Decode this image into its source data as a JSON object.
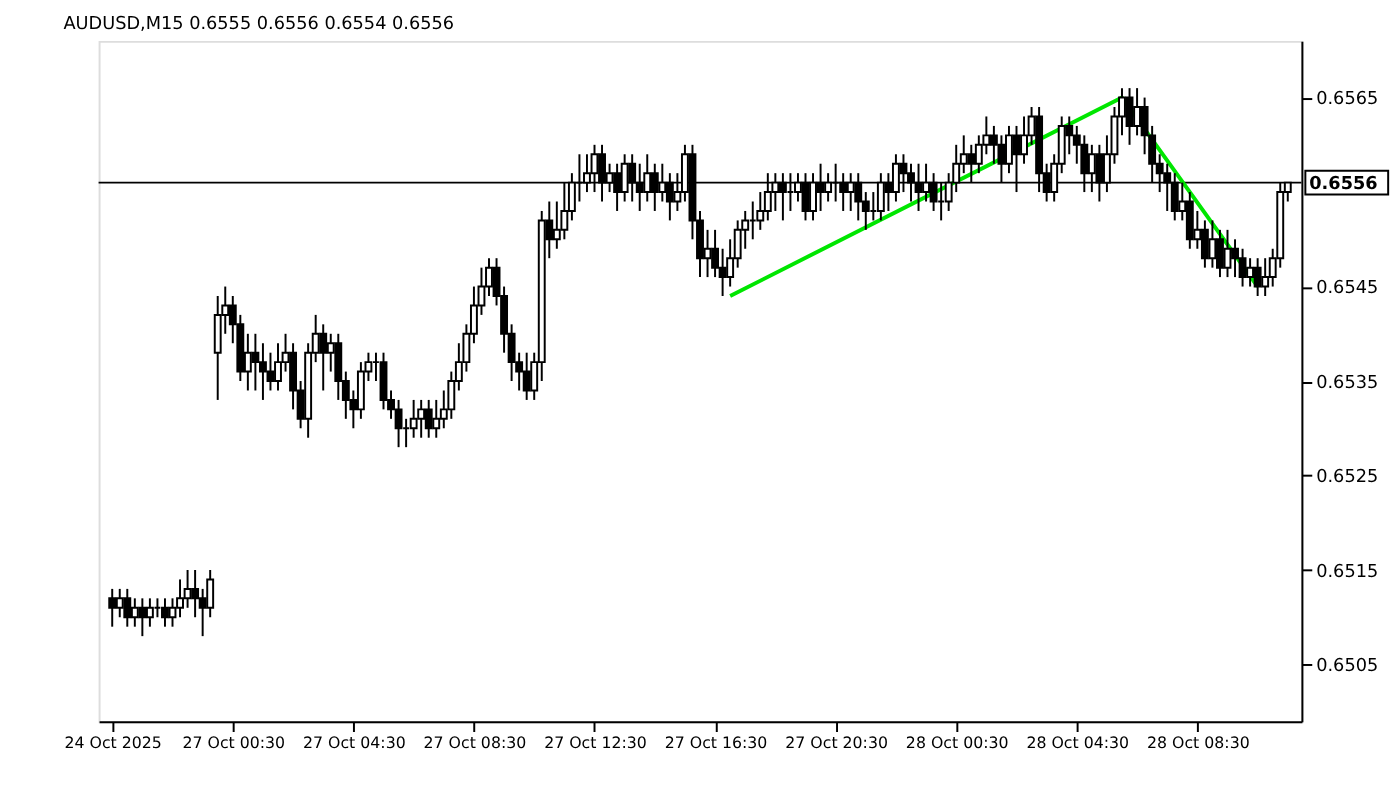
{
  "chart_data": {
    "type": "candlestick",
    "title": "AUDUSD,M15  0.6555 0.6556 0.6554 0.6556",
    "categories": [
      "24 Oct 2025",
      null,
      null,
      null,
      null,
      null,
      null,
      null,
      null,
      null,
      null,
      null,
      null,
      null,
      null,
      null,
      "27 Oct 00:30",
      null,
      null,
      null,
      null,
      null,
      null,
      null,
      null,
      null,
      null,
      null,
      null,
      null,
      null,
      null,
      "27 Oct 04:30",
      null,
      null,
      null,
      null,
      null,
      null,
      null,
      null,
      null,
      null,
      null,
      null,
      null,
      null,
      null,
      "27 Oct 08:30",
      null,
      null,
      null,
      null,
      null,
      null,
      null,
      null,
      null,
      null,
      null,
      null,
      null,
      null,
      null,
      "27 Oct 12:30",
      null,
      null,
      null,
      null,
      null,
      null,
      null,
      null,
      null,
      null,
      null,
      null,
      null,
      null,
      null,
      "27 Oct 16:30",
      null,
      null,
      null,
      null,
      null,
      null,
      null,
      null,
      null,
      null,
      null,
      null,
      null,
      null,
      null,
      "27 Oct 20:30",
      null,
      null,
      null,
      null,
      null,
      null,
      null,
      null,
      null,
      null,
      null,
      null,
      null,
      null,
      null,
      "28 Oct 00:30",
      null,
      null,
      null,
      null,
      null,
      null,
      null,
      null,
      null,
      null,
      null,
      null,
      null,
      null,
      null,
      "28 Oct 04:30",
      null,
      null,
      null,
      null,
      null,
      null,
      null,
      null,
      null,
      null,
      null,
      null,
      null,
      null,
      null,
      "28 Oct 08:30",
      null,
      null,
      null,
      null,
      null,
      null,
      null,
      null,
      null,
      null,
      null,
      null
    ],
    "series": [
      {
        "type": "candlestick",
        "color": "#000000",
        "ohlc": [
          [
            0.6512,
            0.6513,
            0.6509,
            0.6511
          ],
          [
            0.6511,
            0.6513,
            0.651,
            0.6512
          ],
          [
            0.6512,
            0.6513,
            0.6509,
            0.651
          ],
          [
            0.651,
            0.6512,
            0.6509,
            0.6511
          ],
          [
            0.6511,
            0.6512,
            0.6508,
            0.651
          ],
          [
            0.651,
            0.6512,
            0.6509,
            0.6511
          ],
          [
            0.6511,
            0.6512,
            0.651,
            0.6511
          ],
          [
            0.6511,
            0.6512,
            0.6509,
            0.651
          ],
          [
            0.651,
            0.6512,
            0.6509,
            0.6511
          ],
          [
            0.6511,
            0.6514,
            0.651,
            0.6512
          ],
          [
            0.6512,
            0.6515,
            0.6511,
            0.6513
          ],
          [
            0.6513,
            0.6515,
            0.651,
            0.6512
          ],
          [
            0.6512,
            0.6513,
            0.6508,
            0.6511
          ],
          [
            0.6511,
            0.6515,
            0.651,
            0.6514
          ],
          [
            0.6538,
            0.6544,
            0.6533,
            0.6542
          ],
          [
            0.6542,
            0.6545,
            0.654,
            0.6543
          ],
          [
            0.6543,
            0.6544,
            0.6539,
            0.6541
          ],
          [
            0.6541,
            0.6542,
            0.6535,
            0.6536
          ],
          [
            0.6536,
            0.654,
            0.6534,
            0.6538
          ],
          [
            0.6538,
            0.654,
            0.6534,
            0.6537
          ],
          [
            0.6537,
            0.6539,
            0.6533,
            0.6536
          ],
          [
            0.6536,
            0.6538,
            0.6534,
            0.6535
          ],
          [
            0.6535,
            0.6539,
            0.6534,
            0.6537
          ],
          [
            0.6537,
            0.654,
            0.6536,
            0.6538
          ],
          [
            0.6538,
            0.6539,
            0.6532,
            0.6534
          ],
          [
            0.6534,
            0.6535,
            0.653,
            0.6531
          ],
          [
            0.6531,
            0.6539,
            0.6529,
            0.6538
          ],
          [
            0.6538,
            0.6542,
            0.6537,
            0.654
          ],
          [
            0.654,
            0.6541,
            0.6534,
            0.6538
          ],
          [
            0.6538,
            0.654,
            0.6536,
            0.6539
          ],
          [
            0.6539,
            0.654,
            0.6533,
            0.6535
          ],
          [
            0.6535,
            0.6536,
            0.6531,
            0.6533
          ],
          [
            0.6533,
            0.6534,
            0.653,
            0.6532
          ],
          [
            0.6532,
            0.6537,
            0.6531,
            0.6536
          ],
          [
            0.6536,
            0.6538,
            0.6535,
            0.6537
          ],
          [
            0.6537,
            0.6538,
            0.6535,
            0.6537
          ],
          [
            0.6537,
            0.6538,
            0.6532,
            0.6533
          ],
          [
            0.6533,
            0.6534,
            0.6531,
            0.6532
          ],
          [
            0.6532,
            0.6533,
            0.6528,
            0.653
          ],
          [
            0.653,
            0.6531,
            0.6528,
            0.653
          ],
          [
            0.653,
            0.6533,
            0.6529,
            0.6531
          ],
          [
            0.6531,
            0.6533,
            0.6529,
            0.6532
          ],
          [
            0.6532,
            0.6533,
            0.6529,
            0.653
          ],
          [
            0.653,
            0.6533,
            0.6529,
            0.6531
          ],
          [
            0.6531,
            0.6534,
            0.653,
            0.6532
          ],
          [
            0.6532,
            0.6536,
            0.6531,
            0.6535
          ],
          [
            0.6535,
            0.6539,
            0.6534,
            0.6537
          ],
          [
            0.6537,
            0.6541,
            0.6536,
            0.654
          ],
          [
            0.654,
            0.6545,
            0.6539,
            0.6543
          ],
          [
            0.6543,
            0.6547,
            0.6542,
            0.6545
          ],
          [
            0.6545,
            0.6548,
            0.6544,
            0.6547
          ],
          [
            0.6547,
            0.6548,
            0.6543,
            0.6544
          ],
          [
            0.6544,
            0.6545,
            0.6538,
            0.654
          ],
          [
            0.654,
            0.6541,
            0.6535,
            0.6537
          ],
          [
            0.6537,
            0.6538,
            0.6534,
            0.6536
          ],
          [
            0.6536,
            0.6538,
            0.6533,
            0.6534
          ],
          [
            0.6534,
            0.6538,
            0.6533,
            0.6537
          ],
          [
            0.6537,
            0.6553,
            0.6535,
            0.6552
          ],
          [
            0.6552,
            0.6554,
            0.6548,
            0.655
          ],
          [
            0.655,
            0.6554,
            0.6549,
            0.6551
          ],
          [
            0.6551,
            0.6556,
            0.655,
            0.6553
          ],
          [
            0.6553,
            0.6557,
            0.6552,
            0.6556
          ],
          [
            0.6556,
            0.6559,
            0.6554,
            0.6556
          ],
          [
            0.6556,
            0.6559,
            0.6555,
            0.6557
          ],
          [
            0.6557,
            0.656,
            0.6555,
            0.6559
          ],
          [
            0.6559,
            0.656,
            0.6554,
            0.6556
          ],
          [
            0.6556,
            0.6558,
            0.6555,
            0.6557
          ],
          [
            0.6557,
            0.6558,
            0.6553,
            0.6555
          ],
          [
            0.6555,
            0.6559,
            0.6554,
            0.6558
          ],
          [
            0.6558,
            0.6559,
            0.6554,
            0.6556
          ],
          [
            0.6556,
            0.6558,
            0.6553,
            0.6555
          ],
          [
            0.6555,
            0.6559,
            0.6554,
            0.6557
          ],
          [
            0.6557,
            0.6558,
            0.6553,
            0.6555
          ],
          [
            0.6555,
            0.6558,
            0.6554,
            0.6556
          ],
          [
            0.6556,
            0.6557,
            0.6552,
            0.6554
          ],
          [
            0.6554,
            0.6557,
            0.6553,
            0.6555
          ],
          [
            0.6555,
            0.656,
            0.6554,
            0.6559
          ],
          [
            0.6559,
            0.656,
            0.655,
            0.6552
          ],
          [
            0.6552,
            0.6553,
            0.6546,
            0.6548
          ],
          [
            0.6548,
            0.6551,
            0.6546,
            0.6549
          ],
          [
            0.6549,
            0.6551,
            0.6546,
            0.6547
          ],
          [
            0.6547,
            0.6549,
            0.6544,
            0.6546
          ],
          [
            0.6546,
            0.655,
            0.6545,
            0.6548
          ],
          [
            0.6548,
            0.6552,
            0.6547,
            0.6551
          ],
          [
            0.6551,
            0.6553,
            0.6549,
            0.6552
          ],
          [
            0.6552,
            0.6554,
            0.655,
            0.6552
          ],
          [
            0.6552,
            0.6555,
            0.6551,
            0.6553
          ],
          [
            0.6553,
            0.6557,
            0.6552,
            0.6555
          ],
          [
            0.6555,
            0.6557,
            0.6553,
            0.6556
          ],
          [
            0.6556,
            0.6557,
            0.6552,
            0.6555
          ],
          [
            0.6555,
            0.6557,
            0.6553,
            0.6555
          ],
          [
            0.6555,
            0.6557,
            0.6554,
            0.6556
          ],
          [
            0.6556,
            0.6557,
            0.6552,
            0.6553
          ],
          [
            0.6553,
            0.6557,
            0.6552,
            0.6556
          ],
          [
            0.6556,
            0.6558,
            0.6553,
            0.6555
          ],
          [
            0.6555,
            0.6557,
            0.6554,
            0.6556
          ],
          [
            0.6556,
            0.6558,
            0.6554,
            0.6556
          ],
          [
            0.6556,
            0.6557,
            0.6553,
            0.6555
          ],
          [
            0.6555,
            0.6557,
            0.6553,
            0.6556
          ],
          [
            0.6556,
            0.6557,
            0.6552,
            0.6554
          ],
          [
            0.6554,
            0.6555,
            0.6551,
            0.6553
          ],
          [
            0.6553,
            0.6555,
            0.6552,
            0.6553
          ],
          [
            0.6553,
            0.6557,
            0.6552,
            0.6556
          ],
          [
            0.6556,
            0.6557,
            0.6553,
            0.6555
          ],
          [
            0.6555,
            0.6559,
            0.6554,
            0.6558
          ],
          [
            0.6558,
            0.6559,
            0.6555,
            0.6557
          ],
          [
            0.6557,
            0.6558,
            0.6554,
            0.6556
          ],
          [
            0.6556,
            0.6558,
            0.6553,
            0.6555
          ],
          [
            0.6555,
            0.6558,
            0.6554,
            0.6556
          ],
          [
            0.6556,
            0.6557,
            0.6553,
            0.6554
          ],
          [
            0.6554,
            0.6556,
            0.6552,
            0.6554
          ],
          [
            0.6554,
            0.6557,
            0.6553,
            0.6556
          ],
          [
            0.6556,
            0.656,
            0.6555,
            0.6558
          ],
          [
            0.6558,
            0.6561,
            0.6557,
            0.6559
          ],
          [
            0.6559,
            0.656,
            0.6556,
            0.6558
          ],
          [
            0.6558,
            0.6561,
            0.6557,
            0.656
          ],
          [
            0.656,
            0.6563,
            0.6559,
            0.6561
          ],
          [
            0.6561,
            0.6562,
            0.6558,
            0.656
          ],
          [
            0.656,
            0.6561,
            0.6556,
            0.6558
          ],
          [
            0.6558,
            0.6562,
            0.6557,
            0.6561
          ],
          [
            0.6561,
            0.6562,
            0.6555,
            0.6559
          ],
          [
            0.6559,
            0.6563,
            0.6558,
            0.6561
          ],
          [
            0.6561,
            0.6564,
            0.656,
            0.6563
          ],
          [
            0.6563,
            0.6564,
            0.6555,
            0.6557
          ],
          [
            0.6557,
            0.6558,
            0.6554,
            0.6555
          ],
          [
            0.6555,
            0.6559,
            0.6554,
            0.6558
          ],
          [
            0.6558,
            0.6563,
            0.6557,
            0.6562
          ],
          [
            0.6562,
            0.6563,
            0.6559,
            0.6561
          ],
          [
            0.6561,
            0.6562,
            0.6558,
            0.656
          ],
          [
            0.656,
            0.6561,
            0.6555,
            0.6557
          ],
          [
            0.6557,
            0.656,
            0.6555,
            0.6559
          ],
          [
            0.6559,
            0.656,
            0.6554,
            0.6556
          ],
          [
            0.6556,
            0.6561,
            0.6555,
            0.6559
          ],
          [
            0.6559,
            0.6564,
            0.6558,
            0.6563
          ],
          [
            0.6563,
            0.6566,
            0.6561,
            0.6565
          ],
          [
            0.6565,
            0.6566,
            0.656,
            0.6562
          ],
          [
            0.6562,
            0.6566,
            0.6561,
            0.6564
          ],
          [
            0.6564,
            0.6565,
            0.6559,
            0.6561
          ],
          [
            0.6561,
            0.6562,
            0.6556,
            0.6558
          ],
          [
            0.6558,
            0.6559,
            0.6555,
            0.6557
          ],
          [
            0.6557,
            0.6558,
            0.6553,
            0.6556
          ],
          [
            0.6556,
            0.6557,
            0.6552,
            0.6553
          ],
          [
            0.6553,
            0.6556,
            0.6552,
            0.6554
          ],
          [
            0.6554,
            0.6555,
            0.6549,
            0.655
          ],
          [
            0.655,
            0.6553,
            0.6549,
            0.6551
          ],
          [
            0.6551,
            0.6552,
            0.6547,
            0.6548
          ],
          [
            0.6548,
            0.6552,
            0.6547,
            0.655
          ],
          [
            0.655,
            0.6551,
            0.6546,
            0.6547
          ],
          [
            0.6547,
            0.6551,
            0.6546,
            0.6549
          ],
          [
            0.6549,
            0.655,
            0.6546,
            0.6548
          ],
          [
            0.6548,
            0.6549,
            0.6545,
            0.6546
          ],
          [
            0.6546,
            0.6548,
            0.6545,
            0.6547
          ],
          [
            0.6547,
            0.6548,
            0.6544,
            0.6545
          ],
          [
            0.6545,
            0.6548,
            0.6544,
            0.6546
          ],
          [
            0.6546,
            0.6549,
            0.6545,
            0.6548
          ],
          [
            0.6548,
            0.6556,
            0.6547,
            0.6555
          ],
          [
            0.6555,
            0.6556,
            0.6554,
            0.6556
          ]
        ]
      },
      {
        "type": "line",
        "color": "#00e600",
        "values": [
          null,
          null,
          null,
          null,
          null,
          null,
          null,
          null,
          null,
          null,
          null,
          null,
          null,
          null,
          null,
          null,
          null,
          null,
          null,
          null,
          null,
          null,
          null,
          null,
          null,
          null,
          null,
          null,
          null,
          null,
          null,
          null,
          null,
          null,
          null,
          null,
          null,
          null,
          null,
          null,
          null,
          null,
          null,
          null,
          null,
          null,
          null,
          null,
          null,
          null,
          null,
          null,
          null,
          null,
          null,
          null,
          null,
          null,
          null,
          null,
          null,
          null,
          null,
          null,
          null,
          null,
          null,
          null,
          null,
          null,
          null,
          null,
          null,
          null,
          null,
          null,
          null,
          null,
          null,
          null,
          null,
          null,
          0.6544,
          null,
          null,
          null,
          null,
          null,
          null,
          null,
          null,
          null,
          null,
          null,
          null,
          null,
          null,
          null,
          null,
          null,
          null,
          null,
          null,
          null,
          null,
          null,
          null,
          null,
          null,
          null,
          null,
          null,
          null,
          null,
          null,
          null,
          null,
          null,
          null,
          null,
          null,
          null,
          null,
          null,
          null,
          null,
          null,
          null,
          null,
          null,
          null,
          null,
          null,
          null,
          0.6565,
          null,
          null,
          null,
          null,
          null,
          null,
          null,
          null,
          null,
          null,
          null,
          null,
          null,
          null,
          null,
          null,
          null,
          0.6545,
          null,
          null,
          null,
          null
        ]
      }
    ],
    "ylim": [
      0.6499,
      0.6571
    ],
    "yticks": [
      0.6505,
      0.6515,
      0.6525,
      0.6535,
      0.6545,
      0.6565
    ],
    "ref_lines": [
      {
        "axis": "y",
        "value": 0.6556,
        "label": "0.6556",
        "color": "#000000"
      }
    ],
    "grid": false
  }
}
